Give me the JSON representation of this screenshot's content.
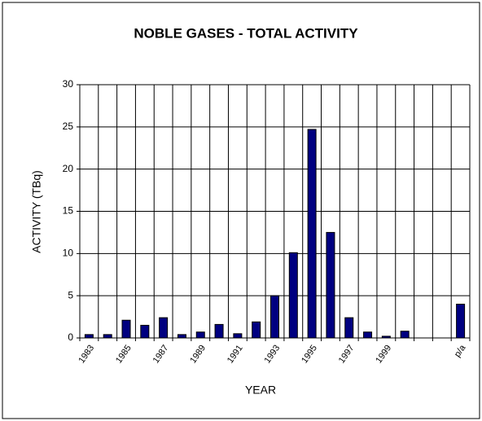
{
  "chart_data": {
    "type": "bar",
    "title": "NOBLE GASES - TOTAL ACTIVITY",
    "x_label": "YEAR",
    "y_label": "ACTIVITY (TBq)",
    "categories": [
      "1983",
      null,
      "1985",
      null,
      "1987",
      null,
      "1989",
      null,
      "1991",
      null,
      "1993",
      null,
      "1995",
      null,
      "1997",
      null,
      "1999",
      null,
      null,
      null,
      "p/a"
    ],
    "values": [
      0.4,
      0.4,
      2.1,
      1.5,
      2.4,
      0.4,
      0.7,
      1.6,
      0.5,
      1.9,
      5.0,
      10.1,
      24.7,
      12.5,
      2.4,
      0.7,
      0.2,
      0.8,
      null,
      null,
      4.0
    ],
    "color": "#000080",
    "ylim": [
      0,
      30
    ],
    "yticks": [
      0,
      5,
      10,
      15,
      20,
      25,
      30
    ],
    "grid": true
  }
}
